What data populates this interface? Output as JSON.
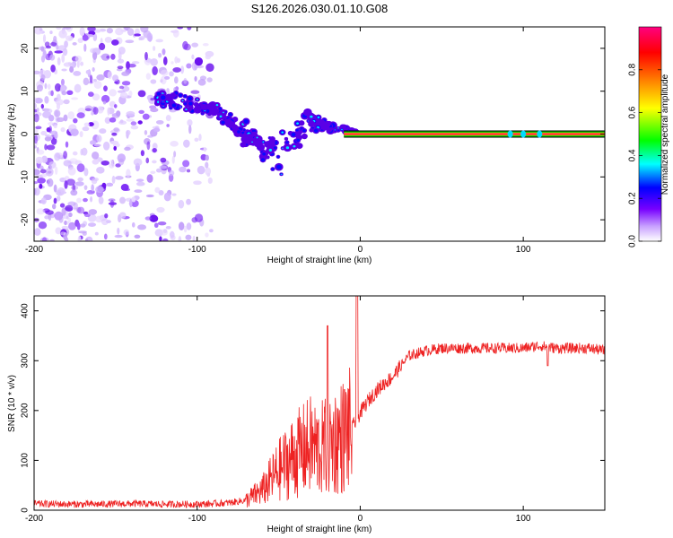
{
  "title": "S126.2026.030.01.10.G08",
  "chart_data": [
    {
      "type": "heatmap",
      "name": "spectrogram",
      "xlabel": "Height of straight line (km)",
      "ylabel": "Frequency (Hz)",
      "xlim": [
        -200,
        150
      ],
      "ylim": [
        -25,
        25
      ],
      "xticks": [
        -200,
        -100,
        0,
        100
      ],
      "xtick_labels": [
        "-200",
        "-100",
        "0",
        "100"
      ],
      "yticks": [
        -20,
        -10,
        0,
        10,
        20
      ],
      "ytick_labels": [
        "-20",
        "-10",
        "0",
        "10",
        "20"
      ],
      "colorbar": {
        "label": "Normalized spectral amplitude",
        "range": [
          0,
          1
        ],
        "ticks": [
          0.0,
          0.2,
          0.4,
          0.6,
          0.8
        ],
        "tick_labels": [
          "0.0",
          "0.2",
          "0.4",
          "0.6",
          "0.8"
        ],
        "colors": [
          "#ffffff",
          "#c8a0ff",
          "#7700ff",
          "#0000ff",
          "#00ffff",
          "#00ff00",
          "#ffff00",
          "#ff8000",
          "#ff0000",
          "#ff0080"
        ]
      },
      "carrier": {
        "x_start": -10,
        "x_end": 150,
        "frequency": 0
      },
      "blobs_trend": [
        {
          "x": -200,
          "f_center": 0,
          "spread": 25
        },
        {
          "x": -120,
          "f_center": 8,
          "spread": 3
        },
        {
          "x": -90,
          "f_center": 6,
          "spread": 2
        },
        {
          "x": -70,
          "f_center": 0,
          "spread": 4
        },
        {
          "x": -50,
          "f_center": -5,
          "spread": 6
        },
        {
          "x": -30,
          "f_center": 3,
          "spread": 3
        },
        {
          "x": -10,
          "f_center": 1,
          "spread": 1
        },
        {
          "x": 0,
          "f_center": 0,
          "spread": 0.5
        }
      ]
    },
    {
      "type": "line",
      "name": "snr",
      "xlabel": "Height of straight line (km)",
      "ylabel": "SNR (10 * v/v)",
      "xlim": [
        -200,
        150
      ],
      "ylim": [
        0,
        430
      ],
      "xticks": [
        -200,
        -100,
        0,
        100
      ],
      "xtick_labels": [
        "-200",
        "-100",
        "0",
        "100"
      ],
      "yticks": [
        0,
        100,
        200,
        300,
        400
      ],
      "ytick_labels": [
        "0",
        "100",
        "200",
        "300",
        "400"
      ],
      "color": "#ee2222",
      "series": [
        {
          "name": "SNR",
          "x": [
            -200,
            -180,
            -160,
            -140,
            -120,
            -100,
            -90,
            -80,
            -70,
            -60,
            -55,
            -50,
            -45,
            -40,
            -35,
            -30,
            -25,
            -20,
            -15,
            -10,
            -5,
            0,
            5,
            10,
            15,
            20,
            25,
            30,
            40,
            50,
            60,
            80,
            100,
            110,
            120,
            140,
            150
          ],
          "values": [
            13,
            12,
            12,
            13,
            12,
            12,
            13,
            15,
            20,
            40,
            60,
            80,
            95,
            110,
            120,
            130,
            120,
            130,
            140,
            150,
            165,
            195,
            220,
            240,
            255,
            268,
            290,
            310,
            320,
            325,
            325,
            325,
            325,
            330,
            325,
            325,
            320
          ]
        }
      ]
    }
  ]
}
